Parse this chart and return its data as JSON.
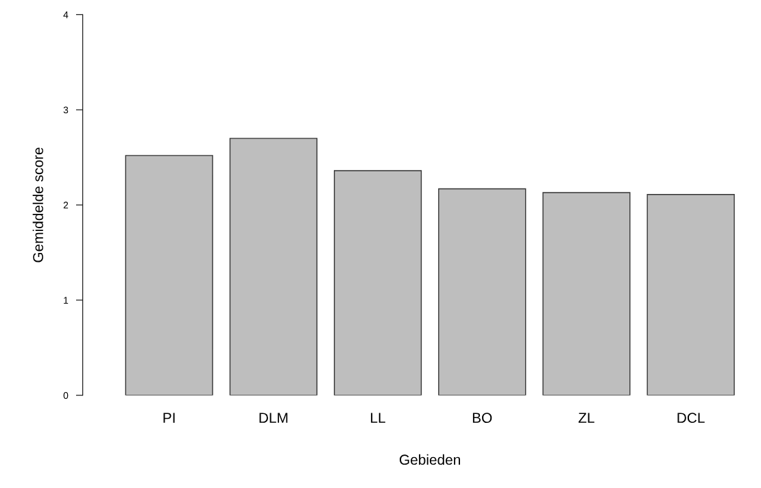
{
  "chart_data": {
    "type": "bar",
    "xlabel": "Gebieden",
    "ylabel": "Gemiddelde score",
    "categories": [
      "PI",
      "DLM",
      "LL",
      "BO",
      "ZL",
      "DCL"
    ],
    "values": [
      2.52,
      2.7,
      2.36,
      2.17,
      2.13,
      2.11
    ],
    "color": "#bebebe",
    "ylim": [
      0,
      4
    ],
    "yticks": [
      0,
      1,
      2,
      3,
      4
    ],
    "grid": false,
    "legend": false
  }
}
